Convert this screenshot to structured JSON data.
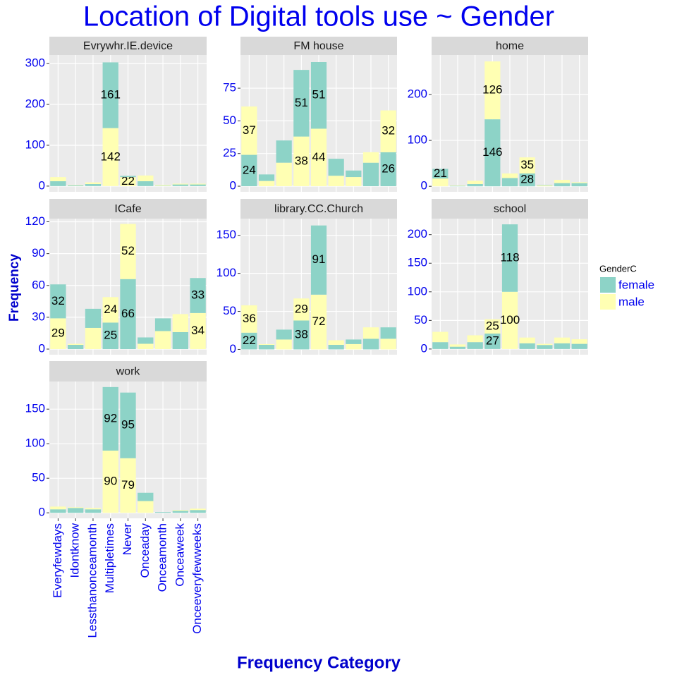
{
  "title": "Location of Digital tools use ~ Gender",
  "x_label": "Frequency Category",
  "y_label": "Frequency",
  "categories": [
    "Everyfewdays",
    "Idontknow",
    "Lessthanonceamonth",
    "Multipletimes",
    "Never",
    "Onceaday",
    "Onceamonth",
    "Onceaweek",
    "Onceeveryfewweeks"
  ],
  "legend": {
    "title": "GenderC",
    "series": [
      {
        "name": "female",
        "color": "#8dd3c7"
      },
      {
        "name": "male",
        "color": "#ffffb3"
      }
    ]
  },
  "chart_data": [
    {
      "type": "bar",
      "stacked": true,
      "panel": "Evrywhr.IE.device",
      "ylim": [
        -14,
        321
      ],
      "yticks": [
        0,
        100,
        200,
        300
      ],
      "grid": true,
      "stack_bottom": [
        0,
        0,
        0,
        1,
        1,
        0,
        0,
        0,
        0
      ],
      "series": [
        {
          "values": [
            12,
            2,
            5,
            161,
            3,
            12,
            1,
            4,
            4
          ],
          "value_labels": [
            null,
            null,
            null,
            "161",
            null,
            null,
            null,
            null,
            null
          ]
        },
        {
          "values": [
            10,
            1,
            4,
            142,
            22,
            14,
            2,
            2,
            2
          ],
          "value_labels": [
            null,
            null,
            null,
            "142",
            "22",
            null,
            null,
            null,
            null
          ]
        }
      ]
    },
    {
      "type": "bar",
      "stacked": true,
      "panel": "FM house",
      "ylim": [
        -4.3,
        100.4
      ],
      "yticks": [
        0,
        25,
        50,
        75
      ],
      "grid": true,
      "stack_bottom": [
        0,
        1,
        1,
        1,
        1,
        1,
        1,
        0,
        0
      ],
      "series": [
        {
          "values": [
            24,
            5,
            17,
            51,
            51,
            13,
            5,
            18,
            26
          ],
          "value_labels": [
            "24",
            null,
            null,
            "51",
            "51",
            null,
            null,
            null,
            "26"
          ]
        },
        {
          "values": [
            37,
            4,
            18,
            38,
            44,
            8,
            7,
            8,
            32
          ],
          "value_labels": [
            "37",
            null,
            null,
            "38",
            "44",
            null,
            null,
            null,
            "32"
          ]
        }
      ]
    },
    {
      "type": "bar",
      "stacked": true,
      "panel": "home",
      "ylim": [
        -12,
        286
      ],
      "yticks": [
        0,
        100,
        200
      ],
      "grid": true,
      "stack_bottom": [
        1,
        0,
        0,
        0,
        0,
        0,
        1,
        0,
        0
      ],
      "series": [
        {
          "values": [
            21,
            1,
            5,
            146,
            18,
            28,
            1,
            7,
            7
          ],
          "value_labels": [
            "21",
            null,
            null,
            "146",
            null,
            "28",
            null,
            null,
            null
          ]
        },
        {
          "values": [
            17,
            1,
            7,
            126,
            10,
            35,
            2,
            7,
            2
          ],
          "value_labels": [
            null,
            null,
            null,
            "126",
            null,
            "35",
            null,
            null,
            null
          ]
        }
      ]
    },
    {
      "type": "bar",
      "stacked": true,
      "panel": "ICafe",
      "ylim": [
        -5.3,
        123
      ],
      "yticks": [
        0,
        30,
        60,
        90,
        120
      ],
      "grid": true,
      "stack_bottom": [
        1,
        0,
        1,
        0,
        0,
        1,
        1,
        0,
        1
      ],
      "series": [
        {
          "values": [
            32,
            4,
            18,
            25,
            66,
            6,
            12,
            16,
            33
          ],
          "value_labels": [
            "32",
            null,
            null,
            "25",
            "66",
            null,
            null,
            null,
            "33"
          ]
        },
        {
          "values": [
            29,
            1,
            20,
            24,
            52,
            5,
            17,
            17,
            34
          ],
          "value_labels": [
            "29",
            null,
            null,
            "24",
            "52",
            null,
            null,
            null,
            "34"
          ]
        }
      ]
    },
    {
      "type": "bar",
      "stacked": true,
      "panel": "library.CC.Church",
      "ylim": [
        -7,
        172
      ],
      "yticks": [
        0,
        50,
        100,
        150
      ],
      "grid": true,
      "stack_bottom": [
        0,
        0,
        1,
        0,
        1,
        0,
        1,
        0,
        1
      ],
      "series": [
        {
          "values": [
            22,
            6,
            13,
            38,
            91,
            6,
            6,
            14,
            15
          ],
          "value_labels": [
            "22",
            null,
            null,
            "38",
            "91",
            null,
            null,
            null,
            null
          ]
        },
        {
          "values": [
            36,
            1,
            13,
            29,
            72,
            6,
            7,
            15,
            14
          ],
          "value_labels": [
            "36",
            null,
            null,
            "29",
            "72",
            null,
            null,
            null,
            null
          ]
        }
      ]
    },
    {
      "type": "bar",
      "stacked": true,
      "panel": "school",
      "ylim": [
        -10,
        228
      ],
      "yticks": [
        0,
        50,
        100,
        150,
        200
      ],
      "grid": true,
      "stack_bottom": [
        0,
        0,
        0,
        0,
        1,
        0,
        0,
        0,
        0
      ],
      "series": [
        {
          "values": [
            12,
            4,
            12,
            27,
            118,
            10,
            7,
            10,
            9
          ],
          "value_labels": [
            null,
            null,
            null,
            "27",
            "118",
            null,
            null,
            null,
            null
          ]
        },
        {
          "values": [
            18,
            4,
            12,
            25,
            100,
            10,
            2,
            10,
            8
          ],
          "value_labels": [
            null,
            null,
            null,
            "25",
            "100",
            null,
            null,
            null,
            null
          ]
        }
      ]
    },
    {
      "type": "bar",
      "stacked": true,
      "panel": "work",
      "ylim": [
        -8,
        190
      ],
      "yticks": [
        0,
        50,
        100,
        150
      ],
      "grid": true,
      "stack_bottom": [
        0,
        0,
        0,
        1,
        1,
        1,
        0,
        0,
        0
      ],
      "series": [
        {
          "values": [
            5,
            7,
            5,
            92,
            95,
            12,
            1,
            3,
            4
          ],
          "value_labels": [
            null,
            null,
            null,
            "92",
            "95",
            null,
            null,
            null,
            null
          ]
        },
        {
          "values": [
            4,
            1,
            2,
            90,
            79,
            17,
            0,
            1,
            2
          ],
          "value_labels": [
            null,
            null,
            null,
            "90",
            "79",
            null,
            null,
            null,
            null
          ]
        }
      ]
    }
  ]
}
